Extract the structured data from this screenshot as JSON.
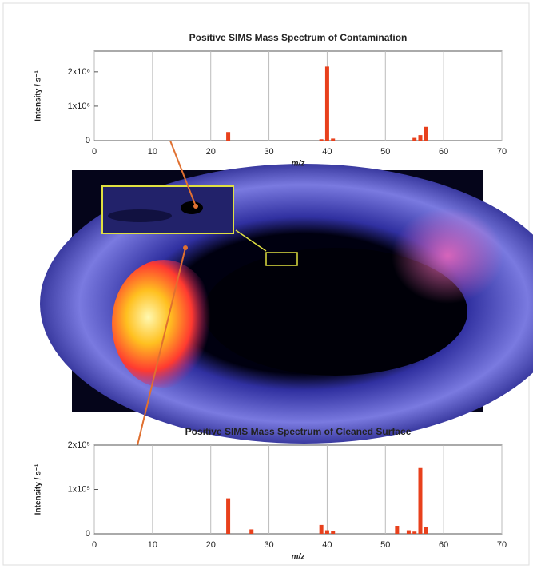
{
  "chart_data": [
    {
      "type": "bar",
      "title": "Positive SIMS Mass Spectrum of Contamination",
      "x_label": "m/z",
      "y_label": "Intensity / s⁻¹",
      "color": "#e8401c",
      "grid": true,
      "x": [
        23,
        39,
        40,
        41,
        55,
        56,
        57
      ],
      "values": [
        250000,
        40000,
        2150000,
        60000,
        80000,
        160000,
        400000
      ],
      "xlim": [
        0,
        70
      ],
      "xticks": [
        0,
        10,
        20,
        30,
        40,
        50,
        60,
        70
      ],
      "ylim": [
        0,
        2600000
      ],
      "yticks": [
        0,
        {
          "value": 1000000,
          "label": "1x10⁶"
        },
        {
          "value": 2000000,
          "label": "2x10⁶"
        }
      ]
    },
    {
      "type": "bar",
      "title": "Positive SIMS Mass Spectrum of Cleaned Surface",
      "x_label": "m/z",
      "y_label": "Intensity / s⁻¹",
      "color": "#e8401c",
      "grid": true,
      "x": [
        23,
        27,
        39,
        40,
        41,
        52,
        54,
        55,
        56,
        57
      ],
      "values": [
        80000,
        10000,
        20000,
        8000,
        6000,
        18000,
        8000,
        5000,
        150000,
        15000
      ],
      "xlim": [
        0,
        70
      ],
      "xticks": [
        0,
        10,
        20,
        30,
        40,
        50,
        60,
        70
      ],
      "ylim": [
        0,
        200000
      ],
      "yticks": [
        0,
        {
          "value": 100000,
          "label": "1x10⁵"
        },
        {
          "value": 200000,
          "label": "2x10⁵"
        }
      ]
    }
  ]
}
